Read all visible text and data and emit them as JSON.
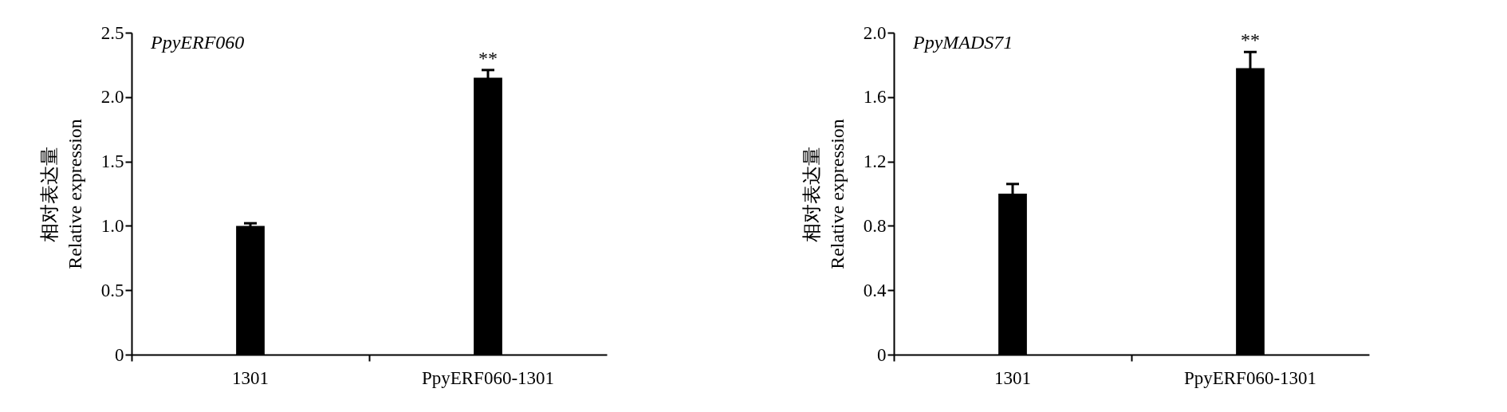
{
  "chart_data": [
    {
      "type": "bar",
      "title": "PpyERF060",
      "ylabel": "相对表达量\nRelative expression",
      "categories": [
        "1301",
        "PpyERF060-1301"
      ],
      "values": [
        1.0,
        2.15
      ],
      "errors": [
        0.02,
        0.06
      ],
      "color": "#000000",
      "ylim": [
        0,
        2.5
      ],
      "yticks": [
        {
          "value": 0,
          "label": "0"
        },
        {
          "value": 0.5,
          "label": "0.5"
        },
        {
          "value": 1,
          "label": "1.0"
        },
        {
          "value": 1.5,
          "label": "1.5"
        },
        {
          "value": 2,
          "label": "2.0"
        },
        {
          "value": 2.5,
          "label": "2.5"
        }
      ],
      "annotations": [
        {
          "text": "**",
          "x": "PpyERF060-1301",
          "y": 2.21
        }
      ]
    },
    {
      "type": "bar",
      "title": "PpyMADS71",
      "ylabel": "相对表达量\nRelative expression",
      "categories": [
        "1301",
        "PpyERF060-1301"
      ],
      "values": [
        1.0,
        1.78
      ],
      "errors": [
        0.06,
        0.1
      ],
      "color": "#000000",
      "ylim": [
        0,
        2.0
      ],
      "yticks": [
        {
          "value": 0,
          "label": "0"
        },
        {
          "value": 0.4,
          "label": "0.4"
        },
        {
          "value": 0.8,
          "label": "0.8"
        },
        {
          "value": 1.2,
          "label": "1.2"
        },
        {
          "value": 1.6,
          "label": "1.6"
        },
        {
          "value": 2,
          "label": "2.0"
        }
      ],
      "annotations": [
        {
          "text": "**",
          "x": "PpyERF060-1301",
          "y": 1.88
        }
      ]
    }
  ]
}
